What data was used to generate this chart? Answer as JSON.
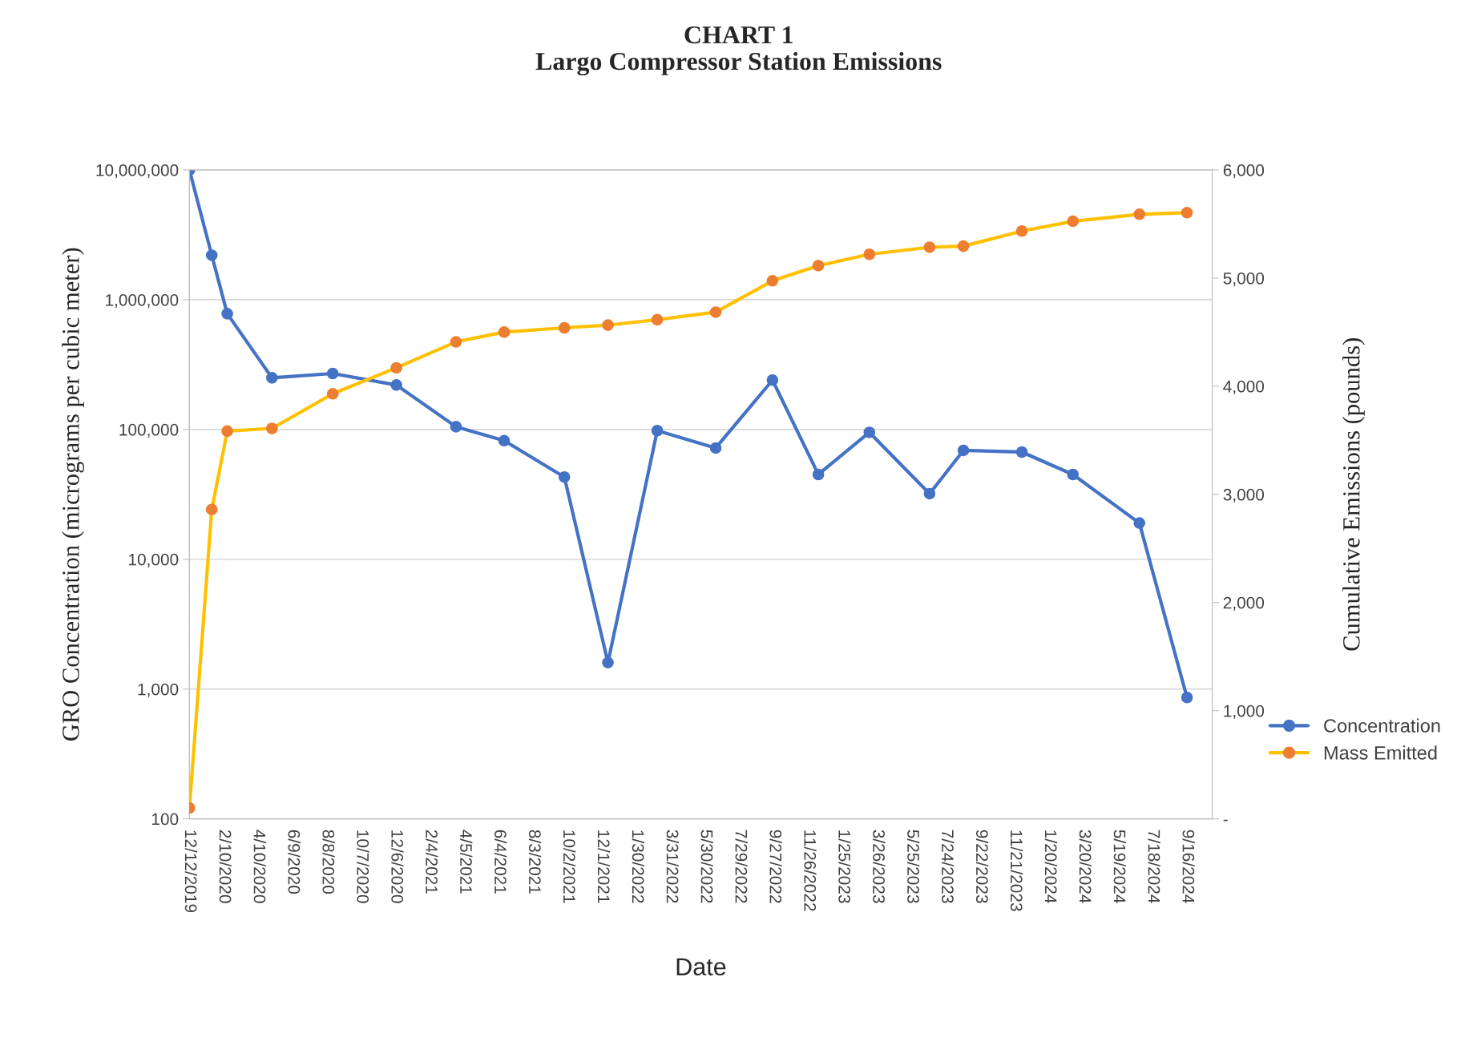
{
  "chart_data": {
    "type": "line",
    "title": "CHART 1",
    "subtitle": "Largo Compressor Station Emissions",
    "xlabel": "Date",
    "ylabel": "GRO Concentration (micrograms per cubic meter)",
    "y2label": "Cumulative Emissions (pounds)",
    "x": [
      "2019-12-12",
      "2020-01-20",
      "2020-02-16",
      "2020-05-04",
      "2020-08-18",
      "2020-12-07",
      "2021-03-21",
      "2021-06-13",
      "2021-09-26",
      "2021-12-11",
      "2022-03-07",
      "2022-06-17",
      "2022-09-24",
      "2022-12-13",
      "2023-03-12",
      "2023-06-25",
      "2023-08-23",
      "2023-12-03",
      "2024-03-01",
      "2024-06-25",
      "2024-09-16"
    ],
    "series": [
      {
        "name": "Concentration",
        "color": "#4472c4",
        "values": [
          10000000,
          2200000,
          780000,
          250000,
          270000,
          220000,
          105000,
          82000,
          43000,
          1600,
          98000,
          72000,
          240000,
          45000,
          95000,
          32000,
          69000,
          67000,
          45000,
          19000,
          860
        ]
      },
      {
        "name": "Mass Emitted",
        "color": "#ffc000",
        "axis": "y2",
        "colors": [
          "#ed7d31",
          "#ed7d31",
          "#ed7d31",
          "#ed7d31",
          "#ed7d31",
          "#ed7d31",
          "#ed7d31",
          "#ed7d31",
          "#ed7d31",
          "#ed7d31",
          "#ed7d31",
          "#ed7d31",
          "#ed7d31",
          "#ed7d31",
          "#ed7d31",
          "#ed7d31",
          "#ed7d31",
          "#ed7d31",
          "#ed7d31",
          "#ed7d31",
          "#ed7d31"
        ],
        "values": [
          100,
          2860,
          3585,
          3610,
          3930,
          4170,
          4410,
          4500,
          4540,
          4565,
          4615,
          4685,
          4975,
          5115,
          5220,
          5285,
          5295,
          5435,
          5525,
          5590,
          5605
        ]
      }
    ],
    "log": "y",
    "ylim": [
      100,
      10000000
    ],
    "yticks": [
      {
        "value": 100,
        "label": "100"
      },
      {
        "value": 1000,
        "label": "1,000"
      },
      {
        "value": 10000,
        "label": "10,000"
      },
      {
        "value": 100000,
        "label": "100,000"
      },
      {
        "value": 1000000,
        "label": "1,000,000"
      },
      {
        "value": 10000000,
        "label": "10,000,000"
      }
    ],
    "y2lim": [
      0,
      6000
    ],
    "y2ticks": [
      {
        "value": 0,
        "label": "-"
      },
      {
        "value": 1000,
        "label": "1,000"
      },
      {
        "value": 2000,
        "label": "2,000"
      },
      {
        "value": 3000,
        "label": "3,000"
      },
      {
        "value": 4000,
        "label": "4,000"
      },
      {
        "value": 5000,
        "label": "5,000"
      },
      {
        "value": 6000,
        "label": "6,000"
      }
    ],
    "xlim": [
      "2019-12-12",
      "2024-10-30"
    ],
    "xticks": [
      {
        "value": "2019-12-12",
        "label": "12/12/2019"
      },
      {
        "value": "2020-02-10",
        "label": "2/10/2020"
      },
      {
        "value": "2020-04-10",
        "label": "4/10/2020"
      },
      {
        "value": "2020-06-09",
        "label": "6/9/2020"
      },
      {
        "value": "2020-08-08",
        "label": "8/8/2020"
      },
      {
        "value": "2020-10-07",
        "label": "10/7/2020"
      },
      {
        "value": "2020-12-06",
        "label": "12/6/2020"
      },
      {
        "value": "2021-02-04",
        "label": "2/4/2021"
      },
      {
        "value": "2021-04-05",
        "label": "4/5/2021"
      },
      {
        "value": "2021-06-04",
        "label": "6/4/2021"
      },
      {
        "value": "2021-08-03",
        "label": "8/3/2021"
      },
      {
        "value": "2021-10-02",
        "label": "10/2/2021"
      },
      {
        "value": "2021-12-01",
        "label": "12/1/2021"
      },
      {
        "value": "2022-01-30",
        "label": "1/30/2022"
      },
      {
        "value": "2022-03-31",
        "label": "3/31/2022"
      },
      {
        "value": "2022-05-30",
        "label": "5/30/2022"
      },
      {
        "value": "2022-07-29",
        "label": "7/29/2022"
      },
      {
        "value": "2022-09-27",
        "label": "9/27/2022"
      },
      {
        "value": "2022-11-26",
        "label": "11/26/2022"
      },
      {
        "value": "2023-01-25",
        "label": "1/25/2023"
      },
      {
        "value": "2023-03-26",
        "label": "3/26/2023"
      },
      {
        "value": "2023-05-25",
        "label": "5/25/2023"
      },
      {
        "value": "2023-07-24",
        "label": "7/24/2023"
      },
      {
        "value": "2023-09-22",
        "label": "9/22/2023"
      },
      {
        "value": "2023-11-21",
        "label": "11/21/2023"
      },
      {
        "value": "2024-01-20",
        "label": "1/20/2024"
      },
      {
        "value": "2024-03-20",
        "label": "3/20/2024"
      },
      {
        "value": "2024-05-19",
        "label": "5/19/2024"
      },
      {
        "value": "2024-07-18",
        "label": "7/18/2024"
      },
      {
        "value": "2024-09-16",
        "label": "9/16/2024"
      }
    ],
    "grid": "y",
    "legend": "right",
    "marker": "circle",
    "line_style": "solid"
  }
}
